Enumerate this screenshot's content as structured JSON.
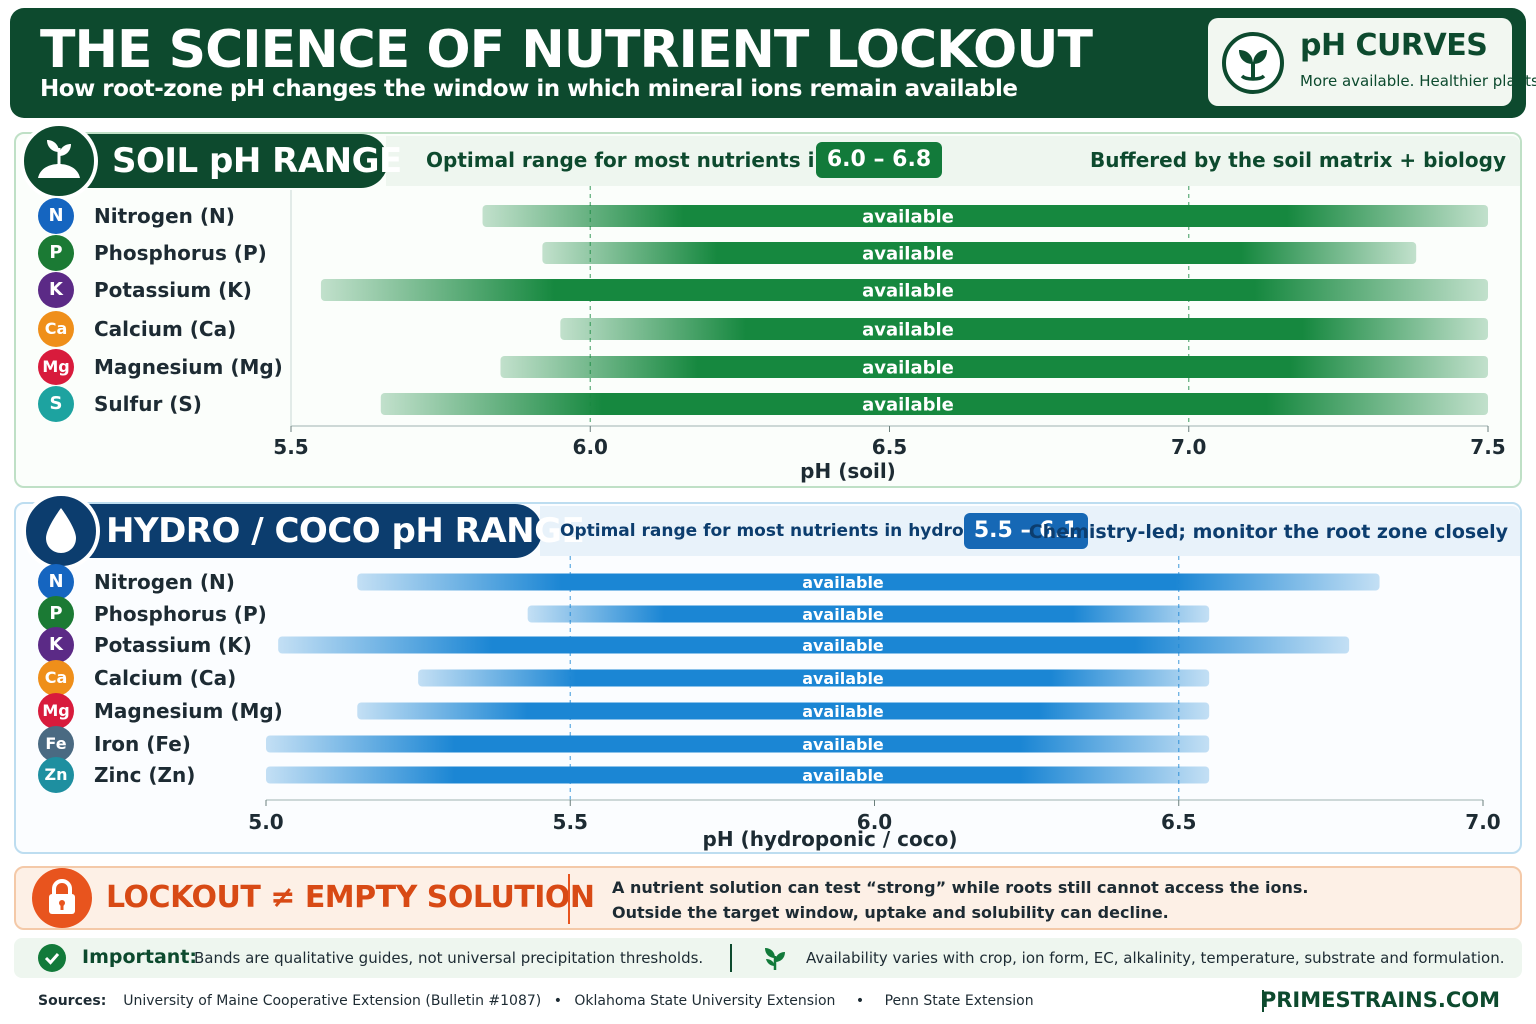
{
  "header": {
    "title": "THE SCIENCE OF NUTRIENT LOCKOUT",
    "subtitle": "How root-zone pH changes the window in which mineral ions remain available",
    "badge_title": "pH CURVES",
    "badge_sub": "More available. Healthier plants."
  },
  "soil": {
    "heading": "SOIL pH RANGE",
    "optimal_label": "Optimal range for most nutrients in soil:",
    "optimal_value": "6.0 – 6.8",
    "note": "Buffered by the soil matrix + biology"
  },
  "hydro": {
    "heading": "HYDRO / COCO pH RANGE",
    "optimal_label": "Optimal range for most nutrients in hydroponics/coco:",
    "optimal_value": "5.5 – 6.1",
    "note": "Chemistry-led; monitor the root zone closely"
  },
  "colors": {
    "soil_dark": "#0d4a2e",
    "soil_bar": "#16883f",
    "hydro_dark": "#0c3d6e",
    "hydro_bar": "#1b86d4",
    "lockout": "#e8541e"
  },
  "chart_data": [
    {
      "type": "bar",
      "orientation": "horizontal-range",
      "title": "SOIL pH RANGE",
      "xlabel": "pH (soil)",
      "xlim": [
        5.5,
        7.5
      ],
      "ticks": [
        "5.5",
        "6.0",
        "6.5",
        "7.0",
        "7.5"
      ],
      "reference_lines": [
        6.0,
        7.0
      ],
      "bar_label": "available",
      "series": [
        {
          "symbol": "N",
          "name": "Nitrogen (N)",
          "color": "#1565c0",
          "start": 5.82,
          "end": 7.5
        },
        {
          "symbol": "P",
          "name": "Phosphorus (P)",
          "color": "#1b7a34",
          "start": 5.92,
          "end": 7.38
        },
        {
          "symbol": "K",
          "name": "Potassium (K)",
          "color": "#5b2a86",
          "start": 5.55,
          "end": 7.5
        },
        {
          "symbol": "Ca",
          "name": "Calcium (Ca)",
          "color": "#ef8f1a",
          "start": 5.95,
          "end": 7.5
        },
        {
          "symbol": "Mg",
          "name": "Magnesium (Mg)",
          "color": "#d81b3c",
          "start": 5.85,
          "end": 7.5
        },
        {
          "symbol": "S",
          "name": "Sulfur (S)",
          "color": "#1da3a0",
          "start": 5.65,
          "end": 7.5
        }
      ]
    },
    {
      "type": "bar",
      "orientation": "horizontal-range",
      "title": "HYDRO / COCO pH RANGE",
      "xlabel": "pH (hydroponic / coco)",
      "xlim": [
        5.0,
        7.0
      ],
      "ticks": [
        "5.0",
        "5.5",
        "6.0",
        "6.5",
        "7.0"
      ],
      "reference_lines": [
        5.5,
        6.5
      ],
      "bar_label": "available",
      "series": [
        {
          "symbol": "N",
          "name": "Nitrogen (N)",
          "color": "#1565c0",
          "start": 5.15,
          "end": 6.83
        },
        {
          "symbol": "P",
          "name": "Phosphorus (P)",
          "color": "#1b7a34",
          "start": 5.43,
          "end": 6.55
        },
        {
          "symbol": "K",
          "name": "Potassium (K)",
          "color": "#5b2a86",
          "start": 5.02,
          "end": 6.78
        },
        {
          "symbol": "Ca",
          "name": "Calcium (Ca)",
          "color": "#ef8f1a",
          "start": 5.25,
          "end": 6.55
        },
        {
          "symbol": "Mg",
          "name": "Magnesium (Mg)",
          "color": "#d81b3c",
          "start": 5.15,
          "end": 6.55
        },
        {
          "symbol": "Fe",
          "name": "Iron (Fe)",
          "color": "#4a6a82",
          "start": 5.0,
          "end": 6.55
        },
        {
          "symbol": "Zn",
          "name": "Zinc (Zn)",
          "color": "#1e8fa0",
          "start": 5.0,
          "end": 6.55
        }
      ]
    }
  ],
  "lockout": {
    "title": "LOCKOUT ≠ EMPTY SOLUTION",
    "line1": "A nutrient solution can test “strong” while roots still cannot access the ions.",
    "line2": "Outside the target window, uptake and solubility can decline."
  },
  "important": {
    "label": "Important:",
    "text": "Bands are qualitative guides, not universal precipitation thresholds.",
    "text2": "Availability varies with crop, ion form, EC, alkalinity, temperature, substrate and formulation."
  },
  "footer": {
    "sources_label": "Sources:",
    "source1": "University of Maine Cooperative Extension (Bulletin #1087)",
    "source2": "Oklahoma State University Extension",
    "source3": "Penn State Extension",
    "separator": "•",
    "brand": "PRIMESTRAINS.COM"
  }
}
